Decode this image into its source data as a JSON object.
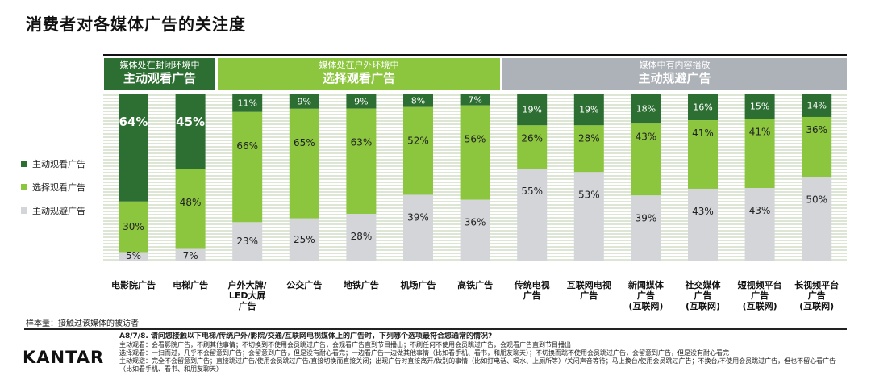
{
  "title": "消费者对各媒体广告的关注度",
  "bands": {
    "closed": {
      "line1": "媒体处在封闭环境中",
      "line2": "主动观看广告"
    },
    "outdoor": {
      "line1": "媒体处在户外环境中",
      "line2": "选择观看广告"
    },
    "avoid": {
      "line1": "媒体中有内容播放",
      "line2": "主动规避广告"
    }
  },
  "legend": [
    {
      "label": "主动观看广告",
      "color": "#2d6e32"
    },
    {
      "label": "选择观看广告",
      "color": "#8cc63f"
    },
    {
      "label": "主动规避广告",
      "color": "#d3d5d9"
    }
  ],
  "chart_data": {
    "type": "bar",
    "stacked": true,
    "categories": [
      [
        "电影院广告"
      ],
      [
        "电梯广告"
      ],
      [
        "户外大牌/",
        "LED大屏",
        "广告"
      ],
      [
        "公交广告"
      ],
      [
        "地铁广告"
      ],
      [
        "机场广告"
      ],
      [
        "高铁广告"
      ],
      [
        "传统电视",
        "广告"
      ],
      [
        "互联网电视",
        "广告"
      ],
      [
        "新闻媒体",
        "广告",
        "(互联网)"
      ],
      [
        "社交媒体",
        "广告",
        "(互联网)"
      ],
      [
        "短视频平台",
        "广告",
        "(互联网)"
      ],
      [
        "长视频平台",
        "广告",
        "(互联网)"
      ]
    ],
    "series": [
      {
        "name": "主动观看广告",
        "color": "#2d6e32",
        "values": [
          64,
          45,
          11,
          9,
          9,
          8,
          7,
          19,
          19,
          18,
          16,
          15,
          14
        ]
      },
      {
        "name": "选择观看广告",
        "color": "#8cc63f",
        "values": [
          30,
          48,
          66,
          65,
          63,
          52,
          56,
          26,
          28,
          43,
          41,
          41,
          36
        ]
      },
      {
        "name": "主动规避广告",
        "color": "#d3d5d9",
        "values": [
          5,
          7,
          23,
          25,
          28,
          39,
          36,
          55,
          53,
          39,
          43,
          43,
          50
        ]
      }
    ],
    "ylim": [
      0,
      100
    ]
  },
  "source_label": "样本量：接触过该媒体的被访者",
  "footnote": {
    "question": "A8/7/8. 请问您接触以下电梯/传统户外/影院/交通/互联网电视媒体上的广告时，下列哪个选项最符合您通常的情况?",
    "lines": [
      "主动观看：会看影院广告，不刷其他事情；不切换到不使用会员跳过广告，会观看广告直到节目播出；不刷任何不使用会员跳过广告，会观看广告直到节目播出",
      "选择观看：一扫而过，几乎不会留意到广告；会留意到广告，但是没有耐心看完；一边看广告一边做其他事情（比如看手机、看书，和朋友聊天）；不切换而跳不使用会员跳过广告，会留意到广告，但是没有耐心看完",
      "主动规避：完全不会留意到广告；直接跳过广告/使用会员跳过广告/直接切换而直接关闭；出现广告时直接离开/做别的事情（比如打电话、喝水、上厕所等）/关闭声音等待；马上换台/使用会员跳过广告；不换台/不使用会员跳过广告，但也不留心看广告（比如看手机、看书、和朋友聊天）"
    ]
  },
  "logo": "KANTAR"
}
